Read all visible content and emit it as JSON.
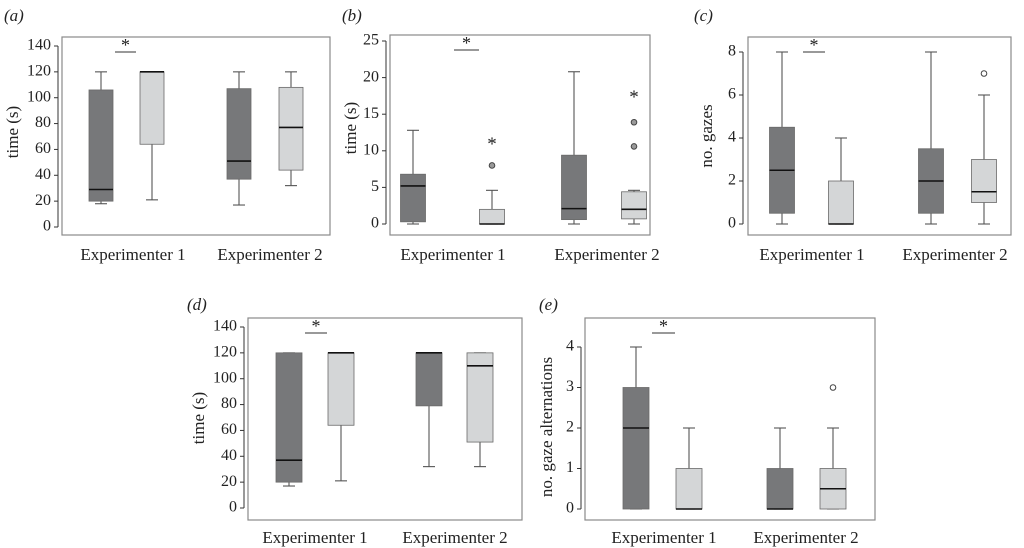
{
  "colors": {
    "dark_box": "#77787a",
    "light_box": "#d4d6d7",
    "frame": "#8a8a8a",
    "whisker": "#555555",
    "median": "#111111"
  },
  "chart_data": [
    {
      "id": "a",
      "panel_label": "(a)",
      "type": "boxplot",
      "ylabel": "time (s)",
      "ylim": [
        0,
        140
      ],
      "yticks": [
        0,
        20,
        40,
        60,
        80,
        100,
        120,
        140
      ],
      "categories": [
        "Experimenter 1",
        "Experimenter 2"
      ],
      "significance_marker": "*",
      "boxes": [
        {
          "category": "Experimenter 1",
          "shade": "dark",
          "min": 18,
          "q1": 20,
          "median": 29,
          "q3": 106,
          "max": 120,
          "outliers": []
        },
        {
          "category": "Experimenter 1",
          "shade": "light",
          "min": 21,
          "q1": 64,
          "median": 120,
          "q3": 120,
          "max": 120,
          "outliers": []
        },
        {
          "category": "Experimenter 2",
          "shade": "dark",
          "min": 17,
          "q1": 37,
          "median": 51,
          "q3": 107,
          "max": 120,
          "outliers": []
        },
        {
          "category": "Experimenter 2",
          "shade": "light",
          "min": 32,
          "q1": 44,
          "median": 77,
          "q3": 108,
          "max": 120,
          "outliers": []
        }
      ]
    },
    {
      "id": "b",
      "panel_label": "(b)",
      "type": "boxplot",
      "ylabel": "time (s)",
      "ylim": [
        0,
        25
      ],
      "yticks": [
        0,
        5,
        10,
        15,
        20,
        25
      ],
      "categories": [
        "Experimenter 1",
        "Experimenter 2"
      ],
      "significance_marker": "*",
      "boxes": [
        {
          "category": "Experimenter 1",
          "shade": "dark",
          "min": 0,
          "q1": 0.3,
          "median": 5.2,
          "q3": 6.8,
          "max": 12.8,
          "outliers": []
        },
        {
          "category": "Experimenter 1",
          "shade": "light",
          "min": 0,
          "q1": 0,
          "median": 0,
          "q3": 2.0,
          "max": 4.6,
          "outliers": [
            {
              "value": 8.0,
              "marker": "circle"
            },
            {
              "value": 10.8,
              "marker": "star"
            }
          ]
        },
        {
          "category": "Experimenter 2",
          "shade": "dark",
          "min": 0,
          "q1": 0.6,
          "median": 2.1,
          "q3": 9.4,
          "max": 20.8,
          "outliers": []
        },
        {
          "category": "Experimenter 2",
          "shade": "light",
          "min": 0,
          "q1": 0.7,
          "median": 2.0,
          "q3": 4.4,
          "max": 4.6,
          "outliers": [
            {
              "value": 10.6,
              "marker": "circle"
            },
            {
              "value": 13.9,
              "marker": "circle"
            },
            {
              "value": 17.2,
              "marker": "star"
            }
          ]
        }
      ]
    },
    {
      "id": "c",
      "panel_label": "(c)",
      "type": "boxplot",
      "ylabel": "no. gazes",
      "ylim": [
        0,
        8
      ],
      "yticks": [
        0,
        2,
        4,
        6,
        8
      ],
      "categories": [
        "Experimenter 1",
        "Experimenter 2"
      ],
      "significance_marker": "*",
      "boxes": [
        {
          "category": "Experimenter 1",
          "shade": "dark",
          "min": 0,
          "q1": 0.5,
          "median": 2.5,
          "q3": 4.5,
          "max": 8,
          "outliers": []
        },
        {
          "category": "Experimenter 1",
          "shade": "light",
          "min": 0,
          "q1": 0,
          "median": 0,
          "q3": 2,
          "max": 4,
          "outliers": []
        },
        {
          "category": "Experimenter 2",
          "shade": "dark",
          "min": 0,
          "q1": 0.5,
          "median": 2,
          "q3": 3.5,
          "max": 8,
          "outliers": []
        },
        {
          "category": "Experimenter 2",
          "shade": "light",
          "min": 0,
          "q1": 1,
          "median": 1.5,
          "q3": 3,
          "max": 6,
          "outliers": [
            {
              "value": 7,
              "marker": "circle"
            }
          ]
        }
      ]
    },
    {
      "id": "d",
      "panel_label": "(d)",
      "type": "boxplot",
      "ylabel": "time (s)",
      "ylim": [
        0,
        140
      ],
      "yticks": [
        0,
        20,
        40,
        60,
        80,
        100,
        120,
        140
      ],
      "categories": [
        "Experimenter 1",
        "Experimenter 2"
      ],
      "significance_marker": "*",
      "boxes": [
        {
          "category": "Experimenter 1",
          "shade": "dark",
          "min": 17,
          "q1": 20,
          "median": 37,
          "q3": 120,
          "max": 120,
          "outliers": []
        },
        {
          "category": "Experimenter 1",
          "shade": "light",
          "min": 21,
          "q1": 64,
          "median": 120,
          "q3": 120,
          "max": 120,
          "outliers": []
        },
        {
          "category": "Experimenter 2",
          "shade": "dark",
          "min": 32,
          "q1": 79,
          "median": 120,
          "q3": 120,
          "max": 120,
          "outliers": []
        },
        {
          "category": "Experimenter 2",
          "shade": "light",
          "min": 32,
          "q1": 51,
          "median": 110,
          "q3": 120,
          "max": 120,
          "outliers": []
        }
      ]
    },
    {
      "id": "e",
      "panel_label": "(e)",
      "type": "boxplot",
      "ylabel": "no. gaze alternations",
      "ylim": [
        0,
        4
      ],
      "yticks": [
        0,
        1,
        2,
        3,
        4
      ],
      "categories": [
        "Experimenter 1",
        "Experimenter 2"
      ],
      "significance_marker": "*",
      "boxes": [
        {
          "category": "Experimenter 1",
          "shade": "dark",
          "min": 0,
          "q1": 0,
          "median": 2,
          "q3": 3,
          "max": 4,
          "outliers": []
        },
        {
          "category": "Experimenter 1",
          "shade": "light",
          "min": 0,
          "q1": 0,
          "median": 0,
          "q3": 1,
          "max": 2,
          "outliers": []
        },
        {
          "category": "Experimenter 2",
          "shade": "dark",
          "min": 0,
          "q1": 0,
          "median": 0,
          "q3": 1,
          "max": 2,
          "outliers": []
        },
        {
          "category": "Experimenter 2",
          "shade": "light",
          "min": 0,
          "q1": 0,
          "median": 0.5,
          "q3": 1,
          "max": 2,
          "outliers": [
            {
              "value": 3,
              "marker": "circle"
            }
          ]
        }
      ]
    }
  ]
}
